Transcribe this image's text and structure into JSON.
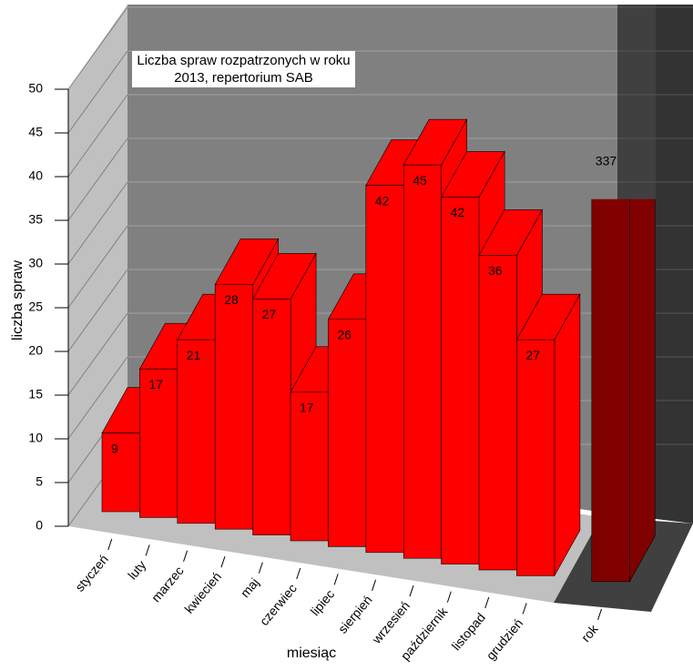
{
  "chart_data": {
    "type": "bar3d",
    "title": "Liczba spraw rozpatrzonych w roku 2013, repertorium SAB",
    "x_label": "miesiąc",
    "y_label": "liczba spraw",
    "categories": [
      "styczeń",
      "luty",
      "marzec",
      "kwiecień",
      "maj",
      "czerwiec",
      "lipiec",
      "sierpień",
      "wrzesień",
      "październik",
      "listopad",
      "grudzień",
      "rok"
    ],
    "values": [
      9,
      17,
      21,
      28,
      27,
      17,
      26,
      42,
      45,
      42,
      36,
      27,
      337
    ],
    "colors": [
      "#ff0000",
      "#ff0000",
      "#ff0000",
      "#ff0000",
      "#ff0000",
      "#ff0000",
      "#ff0000",
      "#ff0000",
      "#ff0000",
      "#ff0000",
      "#ff0000",
      "#ff0000",
      "#800000"
    ],
    "ylim": [
      0,
      50
    ],
    "yticks": [
      0,
      5,
      10,
      15,
      20,
      25,
      30,
      35,
      40,
      45,
      50
    ],
    "grid": true
  }
}
